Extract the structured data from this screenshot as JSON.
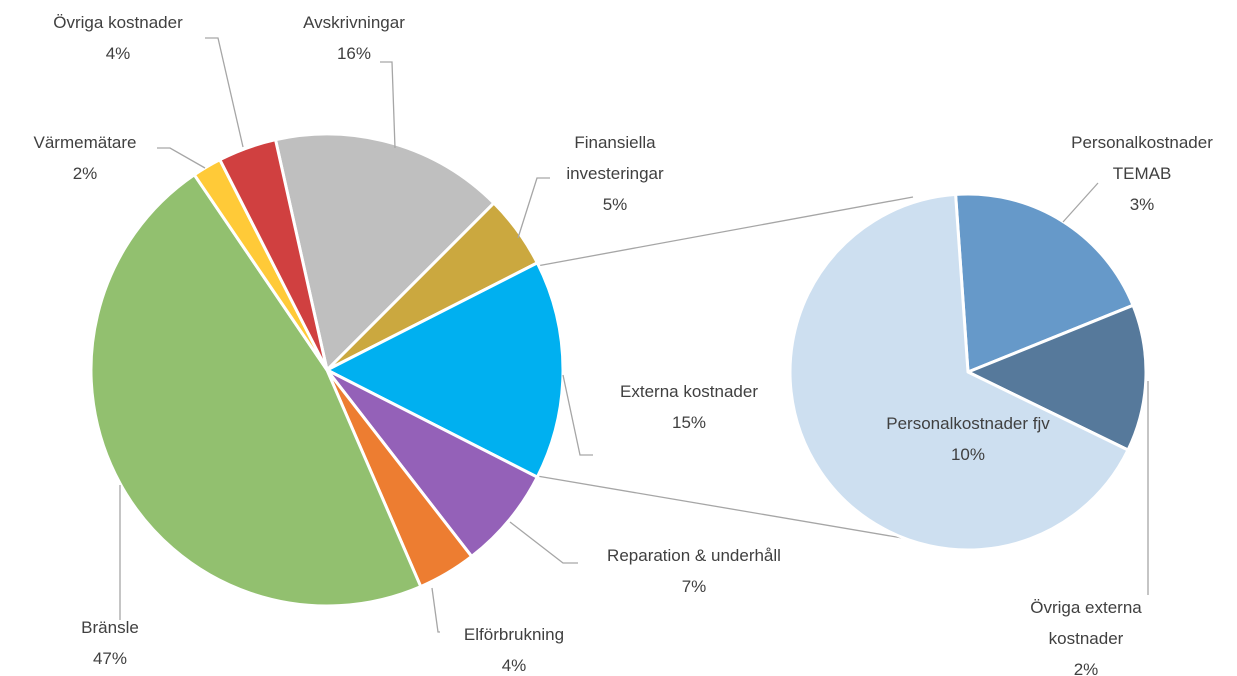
{
  "chart_data": [
    {
      "type": "pie",
      "categories": [
        "Avskrivningar",
        "Finansiella investeringar",
        "Externa kostnader",
        "Reparation & underhåll",
        "Elförbrukning",
        "Bränsle",
        "Värmemätare",
        "Övriga kostnader"
      ],
      "values": [
        16,
        5,
        15,
        7,
        4,
        47,
        2,
        4
      ],
      "value_labels": [
        "16%",
        "5%",
        "15%",
        "7%",
        "4%",
        "47%",
        "2%",
        "4%"
      ],
      "colors": [
        "#bfbfbf",
        "#cba83f",
        "#00b0f0",
        "#9461b8",
        "#ed7d31",
        "#92c06f",
        "#ffca38",
        "#d04040"
      ]
    },
    {
      "type": "pie",
      "categories": [
        "Personalkostnader TEMAB",
        "Övriga externa kostnader",
        "Personalkostnader fjv"
      ],
      "values": [
        3,
        2,
        10
      ],
      "value_labels": [
        "3%",
        "2%",
        "10%"
      ],
      "colors": [
        "#6699c9",
        "#56799b",
        "#cddff0"
      ]
    }
  ]
}
